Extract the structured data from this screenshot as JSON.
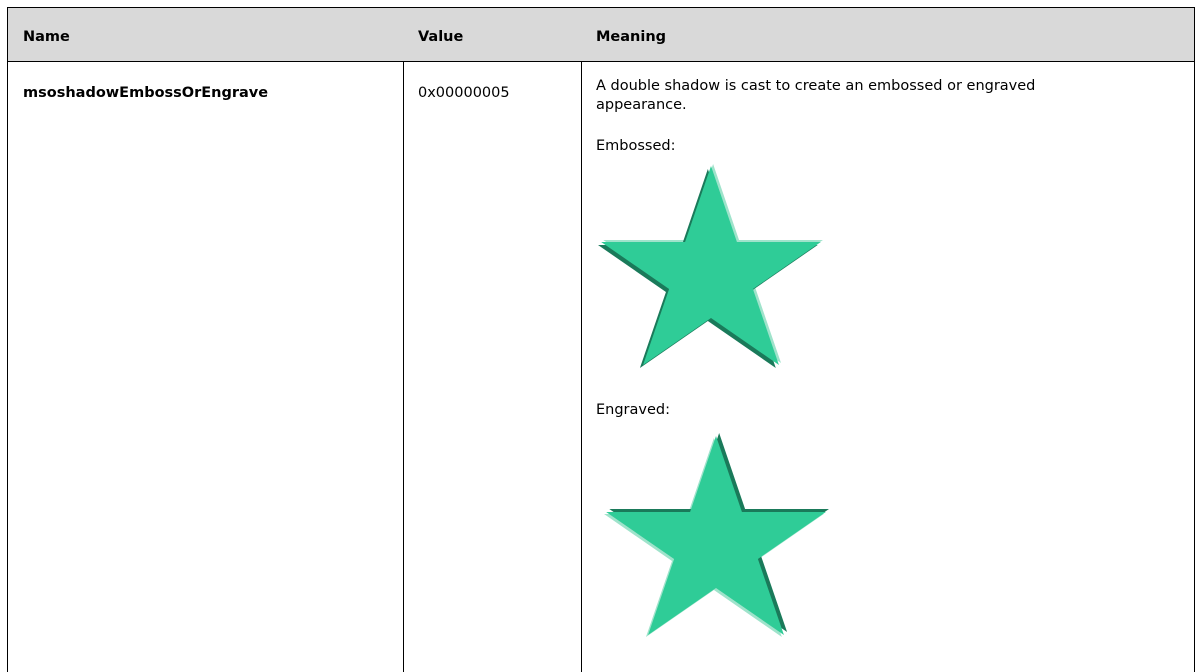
{
  "table": {
    "header": [
      "Name",
      "Value",
      "Meaning"
    ],
    "rows": [
      {
        "name": "msoshadowEmbossOrEngrave",
        "value": "0x00000005",
        "meaning": "A double shadow is cast to create an embossed or engraved appearance.",
        "embossed_label": "Embossed:",
        "engraved_label": "Engraved:"
      }
    ]
  }
}
